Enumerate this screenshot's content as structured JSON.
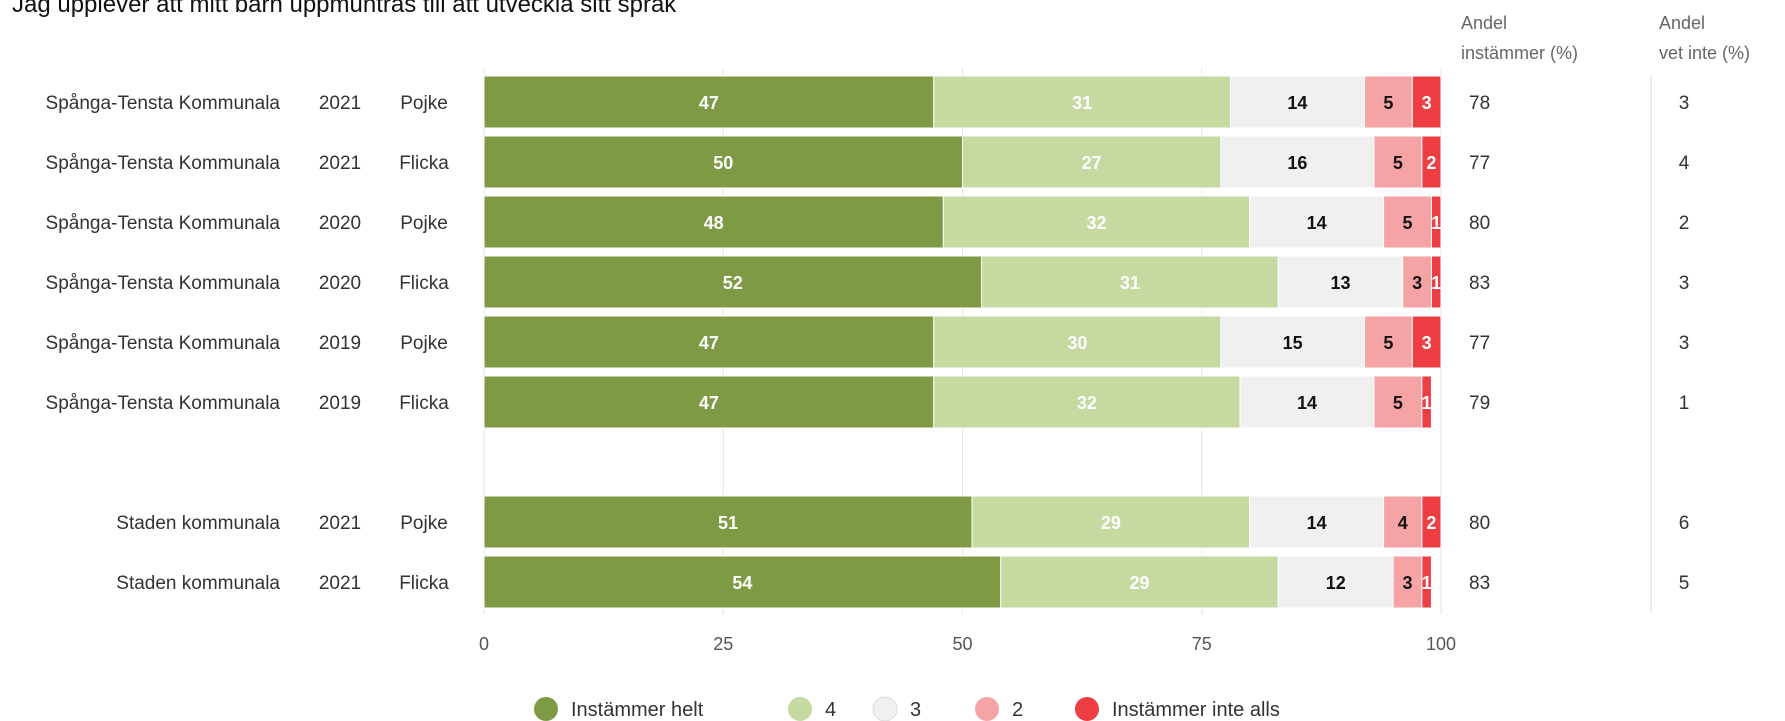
{
  "chart_data": {
    "type": "bar",
    "orientation": "horizontal",
    "stacked": true,
    "title": "Jag upplever att mitt barn uppmuntras till att utveckla sitt språk",
    "xlim": [
      0,
      100
    ],
    "x_ticks": [
      "0",
      "25",
      "50",
      "75",
      "100"
    ],
    "grid": true,
    "legend_position": "bottom",
    "row_headers": {
      "share_agree": [
        "Andel",
        "instämmer (%)"
      ],
      "share_dont_know": [
        "Andel",
        "vet inte (%)"
      ]
    },
    "series": [
      {
        "name": "Instämmer helt",
        "color": "#7f9a45",
        "label_color": "#ffffff"
      },
      {
        "name": "4",
        "color": "#c5d9a0",
        "label_color": "#ffffff"
      },
      {
        "name": "3",
        "color": "#f0f0f0",
        "label_color": "#111111"
      },
      {
        "name": "2",
        "color": "#f5a3a5",
        "label_color": "#111111"
      },
      {
        "name": "Instämmer inte alls",
        "color": "#ee3e43",
        "label_color": "#ffffff"
      }
    ],
    "rows": [
      {
        "unit": "Spånga-Tensta Kommunala",
        "year": "2021",
        "gender": "Pojke",
        "values": [
          47,
          31,
          14,
          5,
          3
        ],
        "share_agree": "78",
        "share_dont_know": "3"
      },
      {
        "unit": "Spånga-Tensta Kommunala",
        "year": "2021",
        "gender": "Flicka",
        "values": [
          50,
          27,
          16,
          5,
          2
        ],
        "share_agree": "77",
        "share_dont_know": "4"
      },
      {
        "unit": "Spånga-Tensta Kommunala",
        "year": "2020",
        "gender": "Pojke",
        "values": [
          48,
          32,
          14,
          5,
          1
        ],
        "share_agree": "80",
        "share_dont_know": "2"
      },
      {
        "unit": "Spånga-Tensta Kommunala",
        "year": "2020",
        "gender": "Flicka",
        "values": [
          52,
          31,
          13,
          3,
          1
        ],
        "share_agree": "83",
        "share_dont_know": "3"
      },
      {
        "unit": "Spånga-Tensta Kommunala",
        "year": "2019",
        "gender": "Pojke",
        "values": [
          47,
          30,
          15,
          5,
          3
        ],
        "share_agree": "77",
        "share_dont_know": "3"
      },
      {
        "unit": "Spånga-Tensta Kommunala",
        "year": "2019",
        "gender": "Flicka",
        "values": [
          47,
          32,
          14,
          5,
          1
        ],
        "share_agree": "79",
        "share_dont_know": "1"
      },
      null,
      {
        "unit": "Staden kommunala",
        "year": "2021",
        "gender": "Pojke",
        "values": [
          51,
          29,
          14,
          4,
          2
        ],
        "share_agree": "80",
        "share_dont_know": "6"
      },
      {
        "unit": "Staden kommunala",
        "year": "2021",
        "gender": "Flicka",
        "values": [
          54,
          29,
          12,
          3,
          1
        ],
        "share_agree": "83",
        "share_dont_know": "5"
      }
    ]
  }
}
